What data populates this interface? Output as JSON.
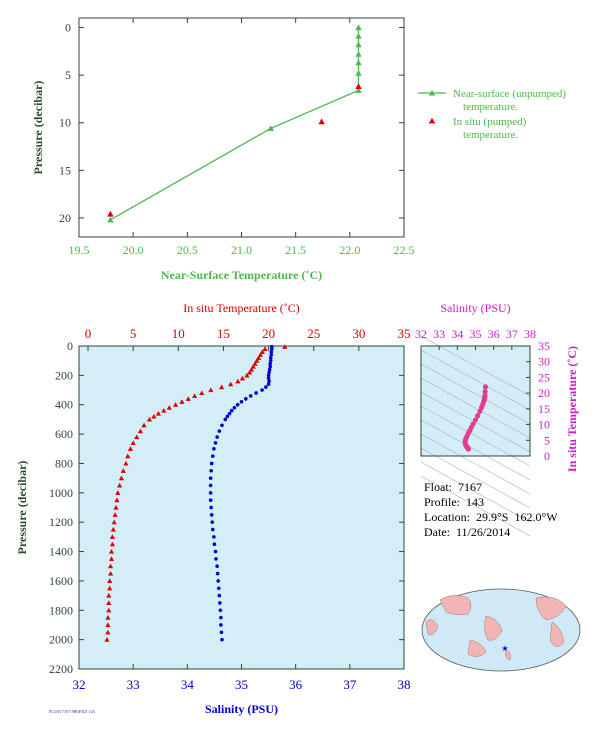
{
  "colors": {
    "green": "#4fb84f",
    "red": "#dd0000",
    "blue": "#0000cc",
    "magenta": "#cc1ec8",
    "pink": "#e23d92",
    "navy": "#1e2f86",
    "axis_dark": "#2d4a2d",
    "panel_fill": "#d4eef8"
  },
  "info": {
    "float": "Float:  7167",
    "profile": "Profile:  143",
    "location": "Location:  29.9°S  162.0°W",
    "date": "Date:  11/26/2014"
  },
  "footer_code": "FLOAT 7167 PROFILE 143",
  "chart_data": [
    {
      "type": "line",
      "title": "",
      "xlabel": "Near-Surface Temperature (˚C)",
      "ylabel": "Pressure (decibar)",
      "xlim": [
        19.5,
        22.5
      ],
      "ylim": [
        22,
        -1
      ],
      "xticks": [
        19.5,
        20.0,
        20.5,
        21.0,
        21.5,
        22.0,
        22.5
      ],
      "xtick_labels": [
        "19.5",
        "20.0",
        "20.5",
        "21.0",
        "21.5",
        "22.0",
        "22.5"
      ],
      "yticks": [
        0,
        5,
        10,
        15,
        20
      ],
      "legend_position": "right",
      "series": [
        {
          "name": "Near-surface (unpumped) temperature.",
          "marker": "triangle",
          "points": [
            [
              22.08,
              0
            ],
            [
              22.08,
              0.9
            ],
            [
              22.08,
              1.8
            ],
            [
              22.08,
              2.8
            ],
            [
              22.08,
              3.7
            ],
            [
              22.08,
              4.8
            ],
            [
              22.08,
              6.6
            ],
            [
              21.27,
              10.6
            ],
            [
              19.79,
              20.2
            ]
          ]
        },
        {
          "name": "In situ (pumped) temperature.",
          "marker": "triangle",
          "points": [
            [
              22.08,
              6.5
            ],
            [
              21.74,
              10.2
            ],
            [
              19.79,
              19.9
            ]
          ]
        }
      ]
    },
    {
      "type": "scatter",
      "title": "",
      "ylabel": "Pressure (decibar)",
      "ylim": [
        2200,
        0
      ],
      "yticks": [
        0,
        200,
        400,
        600,
        800,
        1000,
        1200,
        1400,
        1600,
        1800,
        2000,
        2200
      ],
      "top_axis": {
        "label": "In situ Temperature (˚C)",
        "range": [
          -1,
          35
        ],
        "ticks": [
          0,
          5,
          10,
          15,
          20,
          25,
          30,
          35
        ]
      },
      "bottom_axis": {
        "label": "Salinity (PSU)",
        "range": [
          32,
          38
        ],
        "ticks": [
          32,
          33,
          34,
          35,
          36,
          37,
          38
        ]
      },
      "series": [
        {
          "name": "In situ Temperature (˚C)",
          "marker": "triangle",
          "pressure": [
            5,
            20,
            40,
            60,
            80,
            100,
            120,
            140,
            160,
            180,
            200,
            220,
            240,
            260,
            280,
            300,
            320,
            340,
            360,
            380,
            400,
            420,
            440,
            460,
            480,
            500,
            540,
            580,
            620,
            660,
            700,
            750,
            800,
            850,
            900,
            950,
            1000,
            1050,
            1100,
            1150,
            1200,
            1250,
            1300,
            1350,
            1400,
            1450,
            1500,
            1550,
            1600,
            1650,
            1700,
            1750,
            1800,
            1850,
            1900,
            1950,
            2000
          ],
          "temperature": [
            21.8,
            19.6,
            19.3,
            19.1,
            18.9,
            18.7,
            18.5,
            18.3,
            18.1,
            17.9,
            17.6,
            17.1,
            16.6,
            15.8,
            14.8,
            13.6,
            12.6,
            11.8,
            11.1,
            10.4,
            9.7,
            9.0,
            8.4,
            7.8,
            7.3,
            6.8,
            6.2,
            5.8,
            5.4,
            5.0,
            4.7,
            4.4,
            4.2,
            3.9,
            3.7,
            3.5,
            3.3,
            3.2,
            3.1,
            3.0,
            2.9,
            2.8,
            2.7,
            2.7,
            2.6,
            2.6,
            2.5,
            2.5,
            2.4,
            2.4,
            2.3,
            2.3,
            2.3,
            2.2,
            2.2,
            2.2,
            2.1
          ]
        },
        {
          "name": "Salinity (PSU)",
          "marker": "dot",
          "pressure": [
            5,
            20,
            40,
            60,
            80,
            100,
            120,
            140,
            160,
            180,
            200,
            220,
            240,
            260,
            280,
            300,
            320,
            340,
            360,
            380,
            400,
            420,
            440,
            460,
            480,
            500,
            540,
            580,
            620,
            660,
            700,
            750,
            800,
            850,
            900,
            950,
            1000,
            1050,
            1100,
            1150,
            1200,
            1250,
            1300,
            1350,
            1400,
            1450,
            1500,
            1550,
            1600,
            1650,
            1700,
            1750,
            1800,
            1850,
            1900,
            1950,
            2000
          ],
          "salinity": [
            35.56,
            35.56,
            35.55,
            35.55,
            35.54,
            35.54,
            35.53,
            35.53,
            35.52,
            35.51,
            35.5,
            35.5,
            35.51,
            35.5,
            35.45,
            35.38,
            35.27,
            35.17,
            35.08,
            35.0,
            34.93,
            34.87,
            34.82,
            34.78,
            34.74,
            34.7,
            34.64,
            34.59,
            34.55,
            34.52,
            34.49,
            34.47,
            34.45,
            34.44,
            34.43,
            34.43,
            34.43,
            34.43,
            34.44,
            34.45,
            34.46,
            34.47,
            34.49,
            34.5,
            34.52,
            34.53,
            34.55,
            34.56,
            34.57,
            34.58,
            34.59,
            34.6,
            34.61,
            34.62,
            34.62,
            34.63,
            34.64
          ]
        }
      ]
    },
    {
      "type": "scatter",
      "title": "Salinity (PSU)",
      "xlabel": "Salinity (PSU)",
      "ylabel": "In situ Temperature (˚C)",
      "xlim": [
        32,
        38
      ],
      "ylim": [
        0,
        35
      ],
      "xticks": [
        32,
        33,
        34,
        35,
        36,
        37,
        38
      ],
      "yticks": [
        0,
        5,
        10,
        15,
        20,
        25,
        30,
        35
      ],
      "series": [
        {
          "name": "T-S",
          "marker": "dot",
          "salinity": [
            34.61,
            34.59,
            34.56,
            34.53,
            34.5,
            34.46,
            34.44,
            34.43,
            34.45,
            34.49,
            34.55,
            34.62,
            34.7,
            34.78,
            34.87,
            35.0,
            35.12,
            35.24,
            35.33,
            35.4,
            35.45,
            35.49,
            35.51,
            35.52,
            35.53,
            35.55
          ],
          "temperature": [
            2.2,
            2.4,
            2.6,
            2.8,
            3.1,
            3.5,
            4.0,
            4.6,
            5.2,
            5.8,
            6.6,
            7.4,
            8.2,
            9.2,
            10.2,
            11.5,
            12.8,
            14.2,
            15.4,
            16.4,
            17.3,
            18.0,
            18.7,
            19.3,
            20.5,
            22.0
          ]
        }
      ]
    }
  ]
}
